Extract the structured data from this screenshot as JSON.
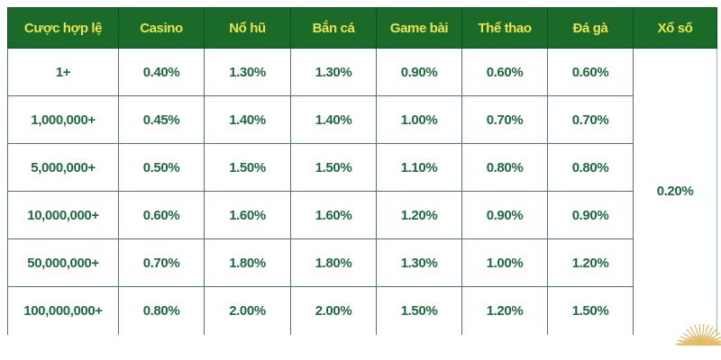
{
  "table": {
    "headers": [
      "Cược hợp lệ",
      "Casino",
      "Nổ hũ",
      "Bắn cá",
      "Game bài",
      "Thể thao",
      "Đá gà",
      "Xổ số"
    ],
    "rows": [
      {
        "tier": "1+",
        "values": [
          "0.40%",
          "1.30%",
          "1.30%",
          "0.90%",
          "0.60%",
          "0.60%"
        ]
      },
      {
        "tier": "1,000,000+",
        "values": [
          "0.45%",
          "1.40%",
          "1.40%",
          "1.00%",
          "0.70%",
          "0.70%"
        ]
      },
      {
        "tier": "5,000,000+",
        "values": [
          "0.50%",
          "1.50%",
          "1.50%",
          "1.10%",
          "0.80%",
          "0.80%"
        ]
      },
      {
        "tier": "10,000,000+",
        "values": [
          "0.60%",
          "1.60%",
          "1.60%",
          "1.20%",
          "0.90%",
          "0.90%"
        ]
      },
      {
        "tier": "50,000,000+",
        "values": [
          "0.70%",
          "1.80%",
          "1.80%",
          "1.30%",
          "1.00%",
          "1.20%"
        ]
      },
      {
        "tier": "100,000,000+",
        "values": [
          "0.80%",
          "2.00%",
          "2.00%",
          "1.50%",
          "1.20%",
          "1.50%"
        ]
      }
    ],
    "xo_so_value": "0.20%"
  },
  "colors": {
    "header_bg": "#1a6b2a",
    "header_text": "#e9e44e",
    "body_text": "#1d6b3c",
    "grid_border": "#4e7a5a",
    "gold_decoration": "#dcab4e"
  },
  "decoration": {
    "name": "golden-fan"
  }
}
